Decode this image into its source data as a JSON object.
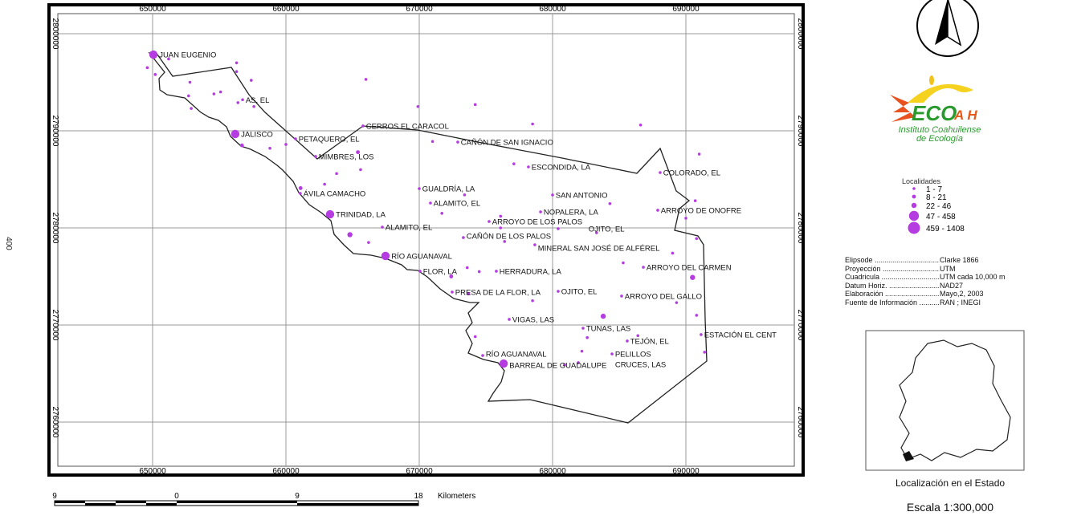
{
  "side_text": "400",
  "map": {
    "x_ticks": [
      "650000",
      "660000",
      "670000",
      "680000",
      "690000"
    ],
    "y_ticks": [
      "2800000",
      "2790000",
      "2780000",
      "2770000",
      "2760000"
    ],
    "point_color": "#b43ce0",
    "localities": [
      {
        "name": "JUAN EUGENIO",
        "e": 650060,
        "n": 2797850,
        "cls": 4
      },
      {
        "name": "AS, EL",
        "e": 656750,
        "n": 2793200,
        "cls": 1
      },
      {
        "name": "JALISCO",
        "e": 656200,
        "n": 2789670,
        "cls": 4
      },
      {
        "name": "CERROS EL CARACOL",
        "e": 665780,
        "n": 2790500,
        "cls": 1
      },
      {
        "name": "PETAQUERO, EL",
        "e": 660720,
        "n": 2789170,
        "cls": 1
      },
      {
        "name": "MIMBRES, LOS",
        "e": 662230,
        "n": 2787360,
        "cls": 1
      },
      {
        "name": "CAÑÓN DE SAN IGNACIO",
        "e": 672890,
        "n": 2788840,
        "cls": 1
      },
      {
        "name": "ESCONDIDA, LA",
        "e": 678190,
        "n": 2786280,
        "cls": 1
      },
      {
        "name": "COLORADO, EL",
        "e": 688070,
        "n": 2785700,
        "cls": 1
      },
      {
        "name": "GUALDRÍA, LA",
        "e": 670000,
        "n": 2784050,
        "cls": 1
      },
      {
        "name": "SAN ANTONIO",
        "e": 680000,
        "n": 2783390,
        "cls": 1
      },
      {
        "name": "ALAMITO, EL",
        "e": 670840,
        "n": 2782560,
        "cls": 1
      },
      {
        "name": "ARROYO DE ONOFRE",
        "e": 687890,
        "n": 2781820,
        "cls": 1
      },
      {
        "name": "ÁVILA CAMACHO",
        "e": 661080,
        "n": 2783550,
        "cls": 1
      },
      {
        "name": "TRINIDAD, LA",
        "e": 663310,
        "n": 2781400,
        "cls": 4
      },
      {
        "name": "NOPALERA, LA",
        "e": 679100,
        "n": 2781650,
        "cls": 1
      },
      {
        "name": "ARROYO DE LOS PALOS",
        "e": 675240,
        "n": 2780660,
        "cls": 1
      },
      {
        "name": "OJITO, EL",
        "e": 680420,
        "n": 2779920,
        "cls": 1
      },
      {
        "name": "ALAMITO, EL",
        "e": 667230,
        "n": 2780080,
        "cls": 1
      },
      {
        "name": "CAÑÓN DE LOS PALOS",
        "e": 673310,
        "n": 2779000,
        "cls": 1
      },
      {
        "name": "MINERAL SAN JOSÉ DE ALFÉREL",
        "e": 678670,
        "n": 2778260,
        "cls": 1
      },
      {
        "name": "RÍO AGUANAVAL",
        "e": 667470,
        "n": 2777110,
        "cls": 4
      },
      {
        "name": "ARROYO DEL CARMEN",
        "e": 686810,
        "n": 2775950,
        "cls": 1
      },
      {
        "name": "FLOR, LA",
        "e": 670060,
        "n": 2775540,
        "cls": 1
      },
      {
        "name": "HERRADURA, LA",
        "e": 675780,
        "n": 2775540,
        "cls": 1
      },
      {
        "name": "PRESA DE LA FLOR, LA",
        "e": 672470,
        "n": 2773390,
        "cls": 1
      },
      {
        "name": "OJITO, EL",
        "e": 680420,
        "n": 2773470,
        "cls": 1
      },
      {
        "name": "ARROYO DEL GALLO",
        "e": 685180,
        "n": 2772980,
        "cls": 1
      },
      {
        "name": "VIGAS, LAS",
        "e": 676750,
        "n": 2770580,
        "cls": 1
      },
      {
        "name": "TUNAS, LAS",
        "e": 682290,
        "n": 2769670,
        "cls": 1
      },
      {
        "name": "TEJÓN, EL",
        "e": 685600,
        "n": 2768350,
        "cls": 1
      },
      {
        "name": "ESTACIÓN EL CENT",
        "e": 691140,
        "n": 2769010,
        "cls": 1
      },
      {
        "name": "RÍO AGUANAVAL",
        "e": 674760,
        "n": 2766860,
        "cls": 1
      },
      {
        "name": "PELILLOS",
        "e": 684460,
        "n": 2767020,
        "cls": 1
      },
      {
        "name": "BARREAL DE GUADALUPE",
        "e": 676330,
        "n": 2766030,
        "cls": 4
      },
      {
        "name": "CRUCES, LAS",
        "e": 681930,
        "n": 2766120,
        "cls": 1
      }
    ],
    "unlabeled_points": [
      {
        "e": 649600,
        "n": 2796500,
        "cls": 1
      },
      {
        "e": 651200,
        "n": 2797400,
        "cls": 1
      },
      {
        "e": 656300,
        "n": 2797000,
        "cls": 1
      },
      {
        "e": 650200,
        "n": 2795800,
        "cls": 1
      },
      {
        "e": 652800,
        "n": 2795000,
        "cls": 1
      },
      {
        "e": 656300,
        "n": 2796100,
        "cls": 1
      },
      {
        "e": 657400,
        "n": 2795200,
        "cls": 1
      },
      {
        "e": 666000,
        "n": 2795300,
        "cls": 1
      },
      {
        "e": 652700,
        "n": 2793600,
        "cls": 1
      },
      {
        "e": 654600,
        "n": 2793800,
        "cls": 1
      },
      {
        "e": 655100,
        "n": 2794000,
        "cls": 1
      },
      {
        "e": 656400,
        "n": 2792900,
        "cls": 1
      },
      {
        "e": 657600,
        "n": 2792500,
        "cls": 1
      },
      {
        "e": 652900,
        "n": 2792300,
        "cls": 1
      },
      {
        "e": 669900,
        "n": 2792500,
        "cls": 1
      },
      {
        "e": 674200,
        "n": 2792700,
        "cls": 1
      },
      {
        "e": 678500,
        "n": 2790700,
        "cls": 1
      },
      {
        "e": 686600,
        "n": 2790600,
        "cls": 1
      },
      {
        "e": 656700,
        "n": 2788500,
        "cls": 2
      },
      {
        "e": 658800,
        "n": 2788200,
        "cls": 1
      },
      {
        "e": 660000,
        "n": 2788600,
        "cls": 1
      },
      {
        "e": 665400,
        "n": 2787800,
        "cls": 2
      },
      {
        "e": 671000,
        "n": 2788900,
        "cls": 1
      },
      {
        "e": 677100,
        "n": 2786600,
        "cls": 1
      },
      {
        "e": 691000,
        "n": 2787600,
        "cls": 1
      },
      {
        "e": 663800,
        "n": 2785600,
        "cls": 1
      },
      {
        "e": 665600,
        "n": 2786000,
        "cls": 1
      },
      {
        "e": 661100,
        "n": 2784100,
        "cls": 2
      },
      {
        "e": 662900,
        "n": 2784500,
        "cls": 1
      },
      {
        "e": 673400,
        "n": 2783400,
        "cls": 1
      },
      {
        "e": 684300,
        "n": 2782500,
        "cls": 1
      },
      {
        "e": 690700,
        "n": 2782800,
        "cls": 1
      },
      {
        "e": 671700,
        "n": 2781500,
        "cls": 1
      },
      {
        "e": 676100,
        "n": 2781200,
        "cls": 1
      },
      {
        "e": 690000,
        "n": 2781000,
        "cls": 1
      },
      {
        "e": 676100,
        "n": 2780000,
        "cls": 1
      },
      {
        "e": 683300,
        "n": 2779500,
        "cls": 1
      },
      {
        "e": 690800,
        "n": 2778900,
        "cls": 1
      },
      {
        "e": 664800,
        "n": 2779300,
        "cls": 3
      },
      {
        "e": 666200,
        "n": 2778500,
        "cls": 1
      },
      {
        "e": 676400,
        "n": 2778600,
        "cls": 1
      },
      {
        "e": 689000,
        "n": 2777400,
        "cls": 1
      },
      {
        "e": 685300,
        "n": 2776400,
        "cls": 1
      },
      {
        "e": 673600,
        "n": 2775900,
        "cls": 1
      },
      {
        "e": 674500,
        "n": 2775500,
        "cls": 1
      },
      {
        "e": 672400,
        "n": 2775000,
        "cls": 2
      },
      {
        "e": 690500,
        "n": 2774900,
        "cls": 3
      },
      {
        "e": 673700,
        "n": 2773200,
        "cls": 1
      },
      {
        "e": 678500,
        "n": 2772500,
        "cls": 1
      },
      {
        "e": 689300,
        "n": 2772300,
        "cls": 1
      },
      {
        "e": 683800,
        "n": 2770900,
        "cls": 3
      },
      {
        "e": 674200,
        "n": 2768800,
        "cls": 1
      },
      {
        "e": 682600,
        "n": 2768700,
        "cls": 1
      },
      {
        "e": 686400,
        "n": 2768900,
        "cls": 1
      },
      {
        "e": 690800,
        "n": 2771000,
        "cls": 1
      },
      {
        "e": 682200,
        "n": 2767300,
        "cls": 1
      },
      {
        "e": 691400,
        "n": 2767200,
        "cls": 1
      },
      {
        "e": 680900,
        "n": 2765900,
        "cls": 1
      }
    ]
  },
  "logo": {
    "wordmark": "ECO",
    "suffix": "A H",
    "line1": "Instituto Coahuilense",
    "line2": "de Ecología"
  },
  "legend": {
    "title": "Localidades",
    "classes": [
      "1 - 7",
      "8 - 21",
      "22 - 46",
      "47 - 458",
      "459 - 1408"
    ]
  },
  "info": [
    {
      "k": "Elipsode",
      "v": "Clarke 1866"
    },
    {
      "k": "Proyección",
      "v": "UTM"
    },
    {
      "k": "Cuadricula",
      "v": "UTM cada 10,000 m"
    },
    {
      "k": "Datum Horiz.",
      "v": "NAD27"
    },
    {
      "k": "Elaboración",
      "v": "Mayo,2, 2003"
    },
    {
      "k": "Fuente de Información",
      "v": "RAN ; INEGI"
    }
  ],
  "inset_caption": "Localización en el Estado",
  "scale_text": "Escala 1:300,000",
  "scalebar": {
    "labels": [
      "9",
      "0",
      "9",
      "18"
    ],
    "unit": "Kilometers"
  }
}
